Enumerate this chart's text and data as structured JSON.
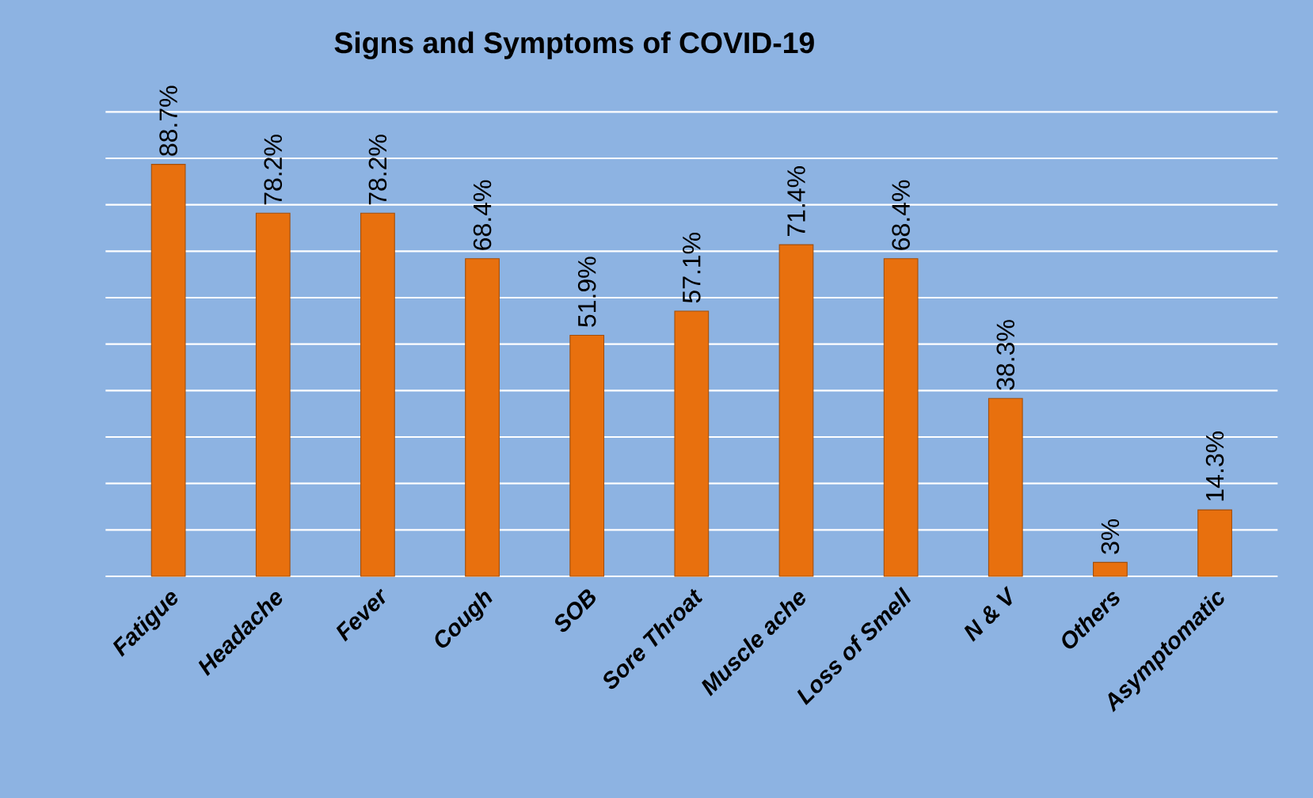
{
  "chart_data": {
    "type": "bar",
    "title": "Signs and Symptoms of COVID-19",
    "categories": [
      "Fatigue",
      "Headache",
      "Fever",
      "Cough",
      "SOB",
      "Sore Throat",
      "Muscle ache",
      "Loss of Smell",
      "N & V",
      "Others",
      "Asymptomatic"
    ],
    "values": [
      88.7,
      78.2,
      78.2,
      68.4,
      51.9,
      57.1,
      71.4,
      68.4,
      38.3,
      3,
      14.3
    ],
    "value_labels": [
      "88.7%",
      "78.2%",
      "78.2%",
      "68.4%",
      "51.9%",
      "57.1%",
      "71.4%",
      "68.4%",
      "38.3%",
      "3%",
      "14.3%"
    ],
    "color": "#e8700e",
    "grid": "y",
    "tick_labels": "x"
  }
}
